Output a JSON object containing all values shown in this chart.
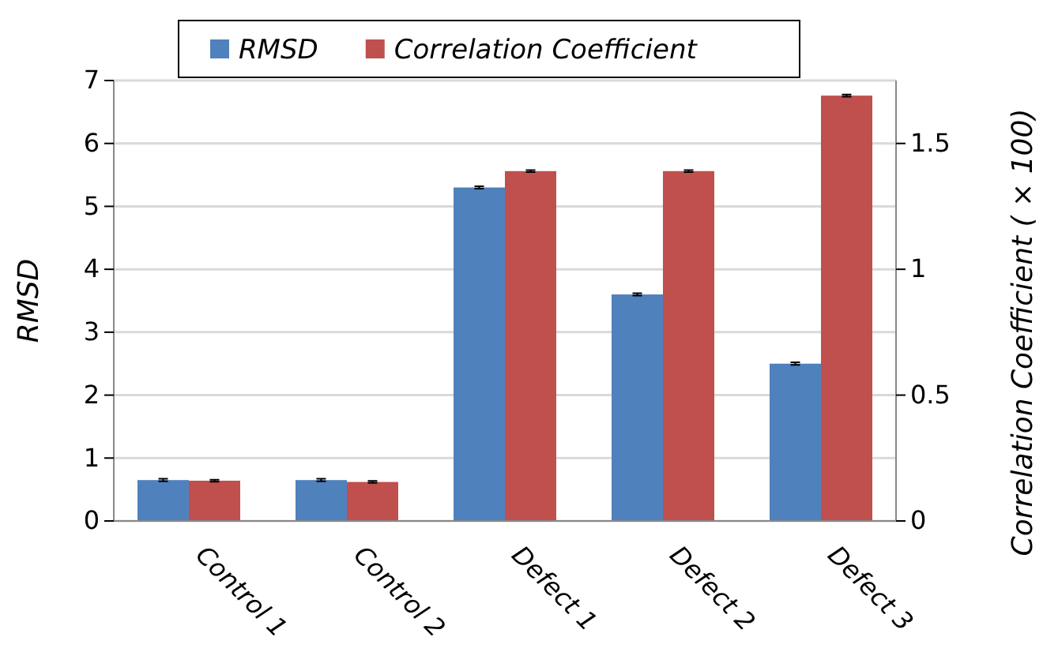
{
  "chart_data": {
    "type": "bar",
    "categories": [
      "Control 1",
      "Control 2",
      "Defect 1",
      "Defect 2",
      "Defect 3"
    ],
    "series": [
      {
        "name": "RMSD",
        "color": "#4f81bd",
        "values": [
          0.65,
          0.65,
          5.3,
          3.6,
          2.5
        ],
        "errors": [
          0.02,
          0.02,
          0.02,
          0.02,
          0.02
        ]
      },
      {
        "name": "Correlation Coefficient",
        "color": "#c0504d",
        "axis": "y2",
        "values": [
          0.16,
          0.155,
          1.39,
          1.39,
          1.69
        ],
        "errors": [
          0.004,
          0.004,
          0.004,
          0.004,
          0.004
        ]
      }
    ],
    "ylabel": "RMSD",
    "y2label": "Correlation Coefficient ( × 100)",
    "ylim": [
      0,
      7
    ],
    "yticks": [
      0,
      1,
      2,
      3,
      4,
      5,
      6,
      7
    ],
    "y2lim": [
      0,
      1.75
    ],
    "y2ticks": [
      0,
      0.5,
      1,
      1.5
    ],
    "legend": "top",
    "grid": "y"
  }
}
